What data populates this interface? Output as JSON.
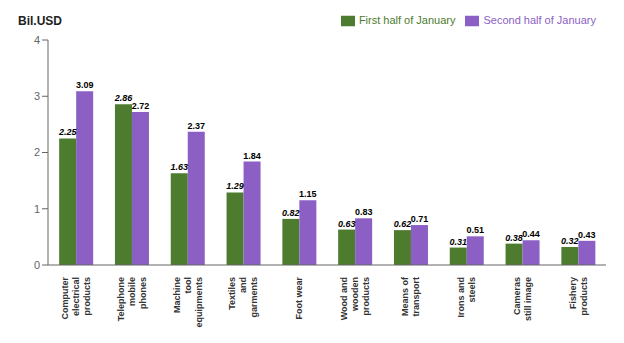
{
  "chart_data": {
    "type": "bar",
    "ylabel": "Bil.USD",
    "categories": [
      "Computer\nelectrical\nproducts",
      "Telephone\nmobile\nphones",
      "Machine\ntool\nequipments",
      "Textiles\nand\ngarments",
      "Foot wear",
      "Wood and\nwooden\nproducts",
      "Means of\ntransport",
      "Irons and\nsteels",
      "Cameras\nstill image",
      "Fishery\nproducts"
    ],
    "series": [
      {
        "name": "First half of January",
        "color": "#4d7c2e",
        "values": [
          2.25,
          2.86,
          1.63,
          1.29,
          0.82,
          0.63,
          0.62,
          0.31,
          0.38,
          0.32
        ]
      },
      {
        "name": "Second half of January",
        "color": "#8b5fc4",
        "values": [
          3.09,
          2.72,
          2.37,
          1.84,
          1.15,
          0.83,
          0.71,
          0.51,
          0.44,
          0.43
        ]
      }
    ],
    "ylim": [
      0,
      4
    ],
    "yticks": [
      0,
      1,
      2,
      3,
      4
    ],
    "grid": false,
    "legend": "upper right",
    "data_labels": true
  }
}
